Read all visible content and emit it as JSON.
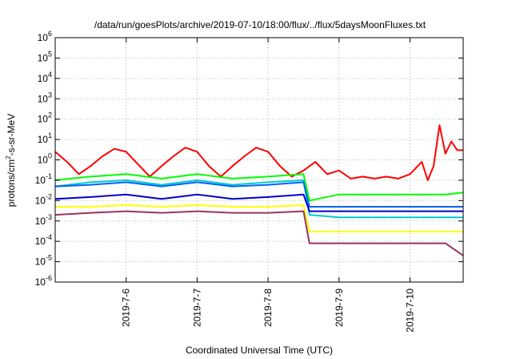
{
  "chart_data": {
    "type": "line",
    "title": "/data/run/goesPlots/archive/2019-07-10/18:00/flux/../flux/5daysMoonFluxes.txt",
    "xlabel": "Coordinated Universal Time (UTC)",
    "ylabel_base": "protons/cm",
    "ylabel_sup": "2",
    "ylabel_rest": "-s-sr-MeV",
    "y_scale": "log",
    "ylim": [
      1e-06,
      1000000.0
    ],
    "y_ticks": [
      {
        "value": 1e-06,
        "base": "10",
        "exp": "-6"
      },
      {
        "value": 1e-05,
        "base": "10",
        "exp": "-5"
      },
      {
        "value": 0.0001,
        "base": "10",
        "exp": "-4"
      },
      {
        "value": 0.001,
        "base": "10",
        "exp": "-3"
      },
      {
        "value": 0.01,
        "base": "10",
        "exp": "-2"
      },
      {
        "value": 0.1,
        "base": "10",
        "exp": "-1"
      },
      {
        "value": 1,
        "base": "10",
        "exp": "0"
      },
      {
        "value": 10,
        "base": "10",
        "exp": "1"
      },
      {
        "value": 100,
        "base": "10",
        "exp": "2"
      },
      {
        "value": 1000,
        "base": "10",
        "exp": "3"
      },
      {
        "value": 10000,
        "base": "10",
        "exp": "4"
      },
      {
        "value": 100000,
        "base": "10",
        "exp": "5"
      },
      {
        "value": 1000000,
        "base": "10",
        "exp": "6"
      }
    ],
    "xlim": [
      "2019-07-05T00:00",
      "2019-07-10T18:00"
    ],
    "x_ticks": [
      {
        "date": "2019-07-06T00:00",
        "label": "2019-7-6"
      },
      {
        "date": "2019-07-07T00:00",
        "label": "2019-7-7"
      },
      {
        "date": "2019-07-08T00:00",
        "label": "2019-7-8"
      },
      {
        "date": "2019-07-09T00:00",
        "label": "2019-7-9"
      },
      {
        "date": "2019-07-10T00:00",
        "label": "2019-7-10"
      }
    ],
    "grid": true,
    "series": [
      {
        "color": "#ff0000",
        "x": [
          "2019-07-05T00:00",
          "2019-07-05T04:00",
          "2019-07-05T08:00",
          "2019-07-05T12:00",
          "2019-07-05T16:00",
          "2019-07-05T20:00",
          "2019-07-06T00:00",
          "2019-07-06T04:00",
          "2019-07-06T08:00",
          "2019-07-06T12:00",
          "2019-07-06T16:00",
          "2019-07-06T20:00",
          "2019-07-07T00:00",
          "2019-07-07T04:00",
          "2019-07-07T08:00",
          "2019-07-07T12:00",
          "2019-07-07T16:00",
          "2019-07-07T20:00",
          "2019-07-08T00:00",
          "2019-07-08T04:00",
          "2019-07-08T08:00",
          "2019-07-08T12:00",
          "2019-07-08T16:00",
          "2019-07-08T20:00",
          "2019-07-09T00:00",
          "2019-07-09T04:00",
          "2019-07-09T08:00",
          "2019-07-09T12:00",
          "2019-07-09T16:00",
          "2019-07-09T20:00",
          "2019-07-10T00:00",
          "2019-07-10T04:00",
          "2019-07-10T06:00",
          "2019-07-10T08:00",
          "2019-07-10T10:00",
          "2019-07-10T12:00",
          "2019-07-10T14:00",
          "2019-07-10T16:00",
          "2019-07-10T18:00"
        ],
        "y": [
          2.5,
          0.8,
          0.2,
          0.5,
          1.5,
          3.5,
          2.5,
          0.6,
          0.15,
          0.5,
          1.5,
          4,
          2.5,
          0.5,
          0.15,
          0.5,
          1.5,
          4,
          2.5,
          0.5,
          0.15,
          0.3,
          0.8,
          0.2,
          0.3,
          0.12,
          0.15,
          0.12,
          0.15,
          0.12,
          0.2,
          0.8,
          0.1,
          0.5,
          50,
          2,
          8,
          3,
          3
        ]
      },
      {
        "color": "#00ff00",
        "x": [
          "2019-07-05T00:00",
          "2019-07-05T12:00",
          "2019-07-06T00:00",
          "2019-07-06T12:00",
          "2019-07-07T00:00",
          "2019-07-07T12:00",
          "2019-07-08T00:00",
          "2019-07-08T12:00",
          "2019-07-08T14:00",
          "2019-07-09T00:00",
          "2019-07-09T12:00",
          "2019-07-10T00:00",
          "2019-07-10T12:00",
          "2019-07-10T18:00"
        ],
        "y": [
          0.1,
          0.15,
          0.2,
          0.12,
          0.2,
          0.12,
          0.15,
          0.2,
          0.01,
          0.02,
          0.02,
          0.02,
          0.02,
          0.025
        ]
      },
      {
        "color": "#00cccc",
        "x": [
          "2019-07-05T00:00",
          "2019-07-05T12:00",
          "2019-07-06T00:00",
          "2019-07-06T12:00",
          "2019-07-07T00:00",
          "2019-07-07T12:00",
          "2019-07-08T00:00",
          "2019-07-08T12:00",
          "2019-07-08T14:00",
          "2019-07-09T00:00",
          "2019-07-09T12:00",
          "2019-07-10T00:00",
          "2019-07-10T12:00",
          "2019-07-10T18:00"
        ],
        "y": [
          0.05,
          0.08,
          0.1,
          0.06,
          0.1,
          0.06,
          0.08,
          0.1,
          0.002,
          0.0015,
          0.0015,
          0.0015,
          0.0015,
          0.0015
        ]
      },
      {
        "color": "#0060ff",
        "x": [
          "2019-07-05T00:00",
          "2019-07-05T12:00",
          "2019-07-06T00:00",
          "2019-07-06T12:00",
          "2019-07-07T00:00",
          "2019-07-07T12:00",
          "2019-07-08T00:00",
          "2019-07-08T12:00",
          "2019-07-08T14:00",
          "2019-07-09T00:00",
          "2019-07-09T12:00",
          "2019-07-10T00:00",
          "2019-07-10T12:00",
          "2019-07-10T18:00"
        ],
        "y": [
          0.05,
          0.06,
          0.08,
          0.05,
          0.08,
          0.05,
          0.06,
          0.08,
          0.005,
          0.005,
          0.005,
          0.005,
          0.005,
          0.005
        ]
      },
      {
        "color": "#0000cc",
        "x": [
          "2019-07-05T00:00",
          "2019-07-05T12:00",
          "2019-07-06T00:00",
          "2019-07-06T12:00",
          "2019-07-07T00:00",
          "2019-07-07T12:00",
          "2019-07-08T00:00",
          "2019-07-08T12:00",
          "2019-07-08T14:00",
          "2019-07-09T00:00",
          "2019-07-09T12:00",
          "2019-07-10T00:00",
          "2019-07-10T12:00",
          "2019-07-10T18:00"
        ],
        "y": [
          0.012,
          0.015,
          0.02,
          0.012,
          0.02,
          0.012,
          0.015,
          0.02,
          0.003,
          0.003,
          0.003,
          0.003,
          0.003,
          0.003
        ]
      },
      {
        "color": "#ffff00",
        "x": [
          "2019-07-05T00:00",
          "2019-07-05T12:00",
          "2019-07-06T00:00",
          "2019-07-06T12:00",
          "2019-07-07T00:00",
          "2019-07-07T12:00",
          "2019-07-08T00:00",
          "2019-07-08T12:00",
          "2019-07-08T14:00",
          "2019-07-09T00:00",
          "2019-07-09T12:00",
          "2019-07-10T00:00",
          "2019-07-10T12:00",
          "2019-07-10T18:00"
        ],
        "y": [
          0.005,
          0.005,
          0.006,
          0.005,
          0.006,
          0.005,
          0.005,
          0.006,
          0.0003,
          0.0003,
          0.0003,
          0.0003,
          0.0003,
          0.0003
        ]
      },
      {
        "color": "#993366",
        "x": [
          "2019-07-05T00:00",
          "2019-07-05T12:00",
          "2019-07-06T00:00",
          "2019-07-06T12:00",
          "2019-07-07T00:00",
          "2019-07-07T12:00",
          "2019-07-08T00:00",
          "2019-07-08T12:00",
          "2019-07-08T14:00",
          "2019-07-09T00:00",
          "2019-07-09T12:00",
          "2019-07-10T00:00",
          "2019-07-10T12:00",
          "2019-07-10T18:00"
        ],
        "y": [
          0.002,
          0.0025,
          0.003,
          0.0025,
          0.003,
          0.0025,
          0.0025,
          0.003,
          8e-05,
          8e-05,
          8e-05,
          8e-05,
          8e-05,
          2e-05
        ]
      }
    ]
  }
}
